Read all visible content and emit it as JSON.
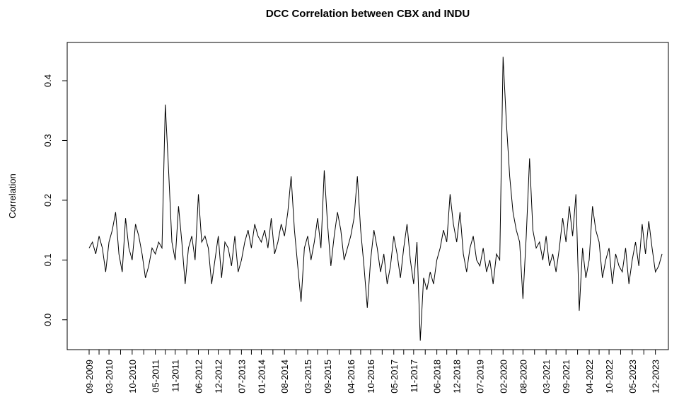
{
  "chart_data": {
    "type": "line",
    "title": "DCC Correlation between CBX and INDU",
    "ylabel": "Correlation",
    "x": [
      "09-2009",
      "10-2009",
      "11-2009",
      "12-2009",
      "01-2010",
      "02-2010",
      "03-2010",
      "04-2010",
      "05-2010",
      "06-2010",
      "07-2010",
      "08-2010",
      "09-2010",
      "10-2010",
      "11-2010",
      "12-2010",
      "01-2011",
      "02-2011",
      "03-2011",
      "04-2011",
      "05-2011",
      "06-2011",
      "07-2011",
      "08-2011",
      "09-2011",
      "10-2011",
      "11-2011",
      "12-2011",
      "01-2012",
      "02-2012",
      "03-2012",
      "04-2012",
      "05-2012",
      "06-2012",
      "07-2012",
      "08-2012",
      "09-2012",
      "10-2012",
      "11-2012",
      "12-2012",
      "01-2013",
      "02-2013",
      "03-2013",
      "04-2013",
      "05-2013",
      "06-2013",
      "07-2013",
      "08-2013",
      "09-2013",
      "10-2013",
      "11-2013",
      "12-2013",
      "01-2014",
      "02-2014",
      "03-2014",
      "04-2014",
      "05-2014",
      "06-2014",
      "07-2014",
      "08-2014",
      "09-2014",
      "10-2014",
      "11-2014",
      "12-2014",
      "01-2015",
      "02-2015",
      "03-2015",
      "04-2015",
      "05-2015",
      "06-2015",
      "07-2015",
      "08-2015",
      "09-2015",
      "10-2015",
      "11-2015",
      "12-2015",
      "01-2016",
      "02-2016",
      "03-2016",
      "04-2016",
      "05-2016",
      "06-2016",
      "07-2016",
      "08-2016",
      "09-2016",
      "10-2016",
      "11-2016",
      "12-2016",
      "01-2017",
      "02-2017",
      "03-2017",
      "04-2017",
      "05-2017",
      "06-2017",
      "07-2017",
      "08-2017",
      "09-2017",
      "10-2017",
      "11-2017",
      "12-2017",
      "01-2018",
      "02-2018",
      "03-2018",
      "04-2018",
      "05-2018",
      "06-2018",
      "07-2018",
      "08-2018",
      "09-2018",
      "10-2018",
      "11-2018",
      "12-2018",
      "01-2019",
      "02-2019",
      "03-2019",
      "04-2019",
      "05-2019",
      "06-2019",
      "07-2019",
      "08-2019",
      "09-2019",
      "10-2019",
      "11-2019",
      "12-2019",
      "01-2020",
      "02-2020",
      "03-2020",
      "04-2020",
      "05-2020",
      "06-2020",
      "07-2020",
      "08-2020",
      "09-2020",
      "10-2020",
      "11-2020",
      "12-2020",
      "01-2021",
      "02-2021",
      "03-2021",
      "04-2021",
      "05-2021",
      "06-2021",
      "07-2021",
      "08-2021",
      "09-2021",
      "10-2021",
      "11-2021",
      "12-2021",
      "01-2022",
      "02-2022",
      "03-2022",
      "04-2022",
      "05-2022",
      "06-2022",
      "07-2022",
      "08-2022",
      "09-2022",
      "10-2022",
      "11-2022",
      "12-2022",
      "01-2023",
      "02-2023",
      "03-2023",
      "04-2023",
      "05-2023",
      "06-2023",
      "07-2023",
      "08-2023",
      "09-2023",
      "10-2023",
      "11-2023",
      "12-2023",
      "01-2024",
      "02-2024"
    ],
    "series": [
      {
        "name": "DCC",
        "color": "#000000",
        "values": [
          0.12,
          0.13,
          0.11,
          0.14,
          0.12,
          0.08,
          0.13,
          0.15,
          0.18,
          0.11,
          0.08,
          0.17,
          0.12,
          0.1,
          0.16,
          0.14,
          0.11,
          0.07,
          0.09,
          0.12,
          0.11,
          0.13,
          0.12,
          0.36,
          0.25,
          0.13,
          0.1,
          0.19,
          0.13,
          0.06,
          0.12,
          0.14,
          0.1,
          0.21,
          0.13,
          0.14,
          0.12,
          0.06,
          0.1,
          0.14,
          0.07,
          0.13,
          0.12,
          0.09,
          0.14,
          0.08,
          0.1,
          0.13,
          0.15,
          0.12,
          0.16,
          0.14,
          0.13,
          0.15,
          0.12,
          0.17,
          0.11,
          0.13,
          0.16,
          0.14,
          0.18,
          0.24,
          0.15,
          0.09,
          0.03,
          0.12,
          0.14,
          0.1,
          0.13,
          0.17,
          0.12,
          0.25,
          0.16,
          0.09,
          0.14,
          0.18,
          0.15,
          0.1,
          0.12,
          0.14,
          0.17,
          0.24,
          0.15,
          0.09,
          0.02,
          0.1,
          0.15,
          0.12,
          0.08,
          0.11,
          0.06,
          0.09,
          0.14,
          0.11,
          0.07,
          0.12,
          0.16,
          0.1,
          0.06,
          0.13,
          -0.035,
          0.07,
          0.05,
          0.08,
          0.06,
          0.1,
          0.12,
          0.15,
          0.13,
          0.21,
          0.16,
          0.13,
          0.18,
          0.11,
          0.08,
          0.12,
          0.14,
          0.1,
          0.09,
          0.12,
          0.08,
          0.1,
          0.06,
          0.11,
          0.1,
          0.44,
          0.33,
          0.24,
          0.18,
          0.15,
          0.13,
          0.035,
          0.14,
          0.27,
          0.15,
          0.12,
          0.13,
          0.1,
          0.14,
          0.09,
          0.11,
          0.08,
          0.12,
          0.17,
          0.13,
          0.19,
          0.14,
          0.21,
          0.015,
          0.12,
          0.07,
          0.1,
          0.19,
          0.15,
          0.13,
          0.07,
          0.1,
          0.12,
          0.06,
          0.11,
          0.09,
          0.08,
          0.12,
          0.06,
          0.1,
          0.13,
          0.09,
          0.16,
          0.11,
          0.165,
          0.12,
          0.08,
          0.09,
          0.11
        ]
      }
    ],
    "ylim": [
      -0.05,
      0.464
    ],
    "yticks": [
      {
        "value": 0,
        "label": "0.0"
      },
      0.1,
      0.2,
      0.3,
      0.4
    ],
    "xticks": [
      "09-2009",
      "03-2010",
      "10-2010",
      "05-2011",
      "11-2011",
      "06-2012",
      "12-2012",
      "07-2013",
      "01-2014",
      "08-2014",
      "03-2015",
      "09-2015",
      "04-2016",
      "10-2016",
      "05-2017",
      "11-2017",
      "06-2018",
      "12-2018",
      "07-2019",
      "02-2020",
      "08-2020",
      "03-2021",
      "09-2021",
      "04-2022",
      "10-2022",
      "05-2023",
      "12-2023"
    ]
  }
}
